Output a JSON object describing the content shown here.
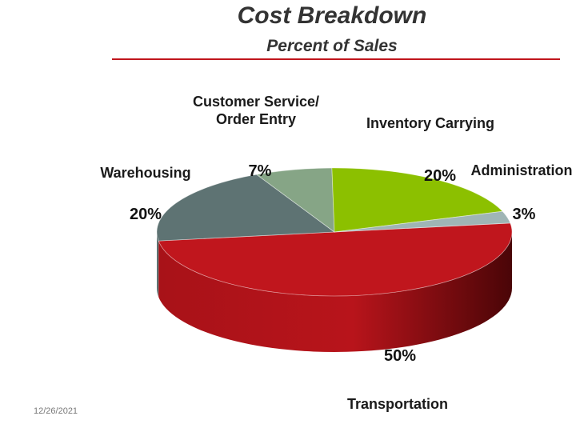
{
  "chart_data": {
    "type": "pie",
    "title": "Cost Breakdown",
    "subtitle": "Percent of Sales",
    "categories": [
      "Transportation",
      "Warehousing",
      "Customer Service/\nOrder Entry",
      "Inventory Carrying",
      "Administration"
    ],
    "values": [
      50,
      20,
      7,
      20,
      3
    ],
    "value_labels": [
      "50%",
      "20%",
      "7%",
      "20%",
      "3%"
    ],
    "colors": [
      "#c0161d",
      "#5e7373",
      "#86a586",
      "#8cc000",
      "#9fb5b5"
    ]
  },
  "footer": {
    "date": "12/26/2021"
  }
}
